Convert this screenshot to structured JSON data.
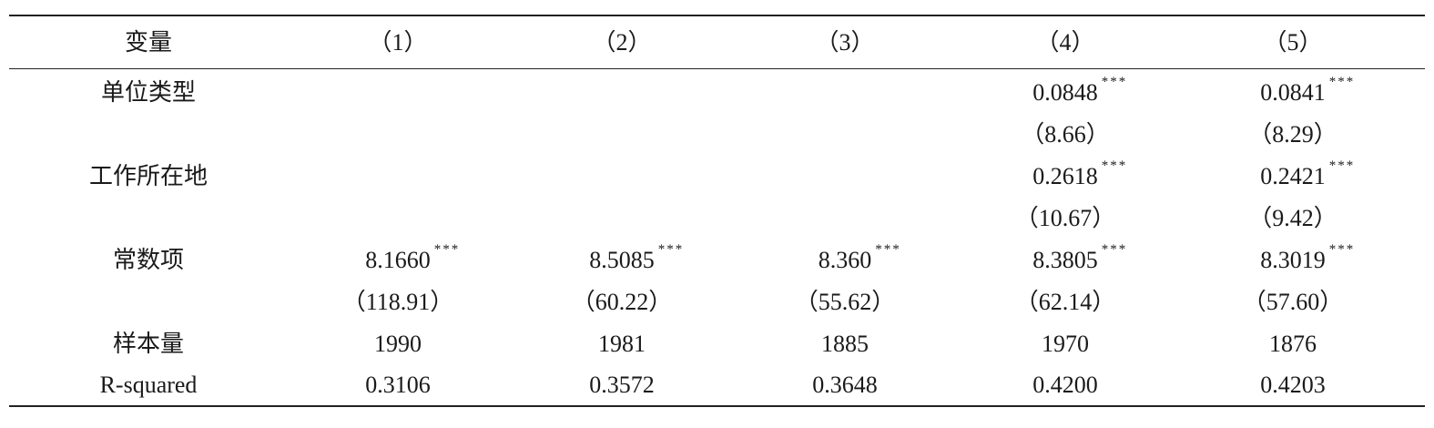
{
  "table": {
    "header": [
      "变量",
      "（1）",
      "（2）",
      "（3）",
      "（4）",
      "（5）"
    ],
    "rows": [
      {
        "label": "单位类型",
        "coef": [
          null,
          null,
          null,
          {
            "value": "0.0848",
            "sig": "***"
          },
          {
            "value": "0.0841",
            "sig": "***"
          }
        ],
        "t": [
          null,
          null,
          null,
          "（8.66）",
          "（8.29）"
        ]
      },
      {
        "label": "工作所在地",
        "coef": [
          null,
          null,
          null,
          {
            "value": "0.2618",
            "sig": "***"
          },
          {
            "value": "0.2421",
            "sig": "***"
          }
        ],
        "t": [
          null,
          null,
          null,
          "（10.67）",
          "（9.42）"
        ]
      },
      {
        "label": "常数项",
        "coef": [
          {
            "value": "8.1660",
            "sig": "***"
          },
          {
            "value": "8.5085",
            "sig": "***"
          },
          {
            "value": "8.360",
            "sig": "***"
          },
          {
            "value": "8.3805",
            "sig": "***"
          },
          {
            "value": "8.3019",
            "sig": "***"
          }
        ],
        "t": [
          "（118.91）",
          "（60.22）",
          "（55.62）",
          "（62.14）",
          "（57.60）"
        ]
      }
    ],
    "stats": [
      {
        "label": "样本量",
        "values": [
          "1990",
          "1981",
          "1885",
          "1970",
          "1876"
        ]
      },
      {
        "label": "R-squared",
        "values": [
          "0.3106",
          "0.3572",
          "0.3648",
          "0.4200",
          "0.4203"
        ]
      }
    ]
  }
}
